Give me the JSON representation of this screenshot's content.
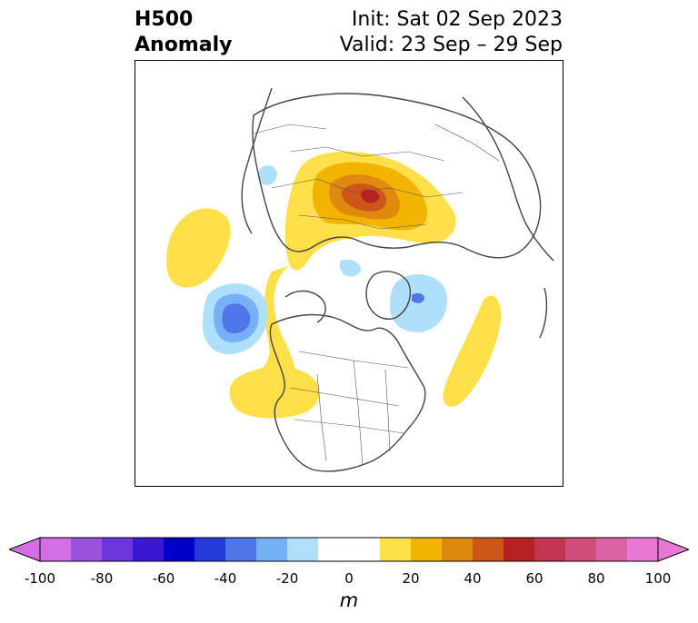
{
  "header": {
    "left_line1": "H500",
    "left_line2": "Anomaly",
    "init": "Init: Sat 02 Sep 2023",
    "valid": "Valid: 23 Sep – 29 Sep"
  },
  "colorbar": {
    "unit": "m",
    "ticks": [
      "-100",
      "-80",
      "-60",
      "-40",
      "-20",
      "0",
      "20",
      "40",
      "60",
      "80",
      "100"
    ],
    "min": -100,
    "max": 100,
    "step": 10,
    "extend": "both",
    "colors": [
      "#d46ee6",
      "#9a52df",
      "#6c36dc",
      "#3b17d3",
      "#0000c8",
      "#2439d8",
      "#4f77e8",
      "#76b1f5",
      "#aee0fb",
      "#ffffff",
      "#ffffff",
      "#ffe04a",
      "#f2b400",
      "#e0890f",
      "#cd5718",
      "#b42222",
      "#c23652",
      "#d04e7c",
      "#dc62a6",
      "#e878d4"
    ],
    "end_colors": {
      "low": "#d46ee6",
      "high": "#e878d4"
    }
  },
  "map": {
    "projection": "north-polar-stereographic",
    "region": "Northern Hemisphere",
    "features": [
      "coastlines",
      "country borders",
      "US state / Canadian province borders"
    ]
  }
}
